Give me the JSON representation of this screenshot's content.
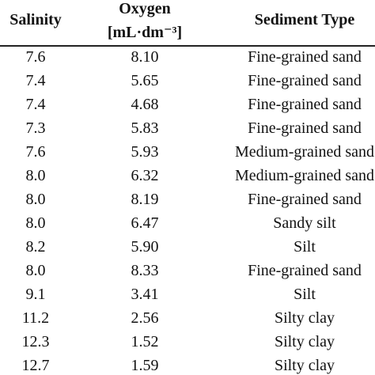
{
  "table": {
    "header": {
      "salinity": "Salinity",
      "oxygen": "Oxygen",
      "oxygen_unit": "[mL·dm⁻³]",
      "sediment": "Sediment Type"
    },
    "rows": [
      [
        "7.6",
        "8.10",
        "Fine-grained sand"
      ],
      [
        "7.4",
        "5.65",
        "Fine-grained sand"
      ],
      [
        "7.4",
        "4.68",
        "Fine-grained sand"
      ],
      [
        "7.3",
        "5.83",
        "Fine-grained sand"
      ],
      [
        "7.6",
        "5.93",
        "Medium-grained sand"
      ],
      [
        "8.0",
        "6.32",
        "Medium-grained sand"
      ],
      [
        "8.0",
        "8.19",
        "Fine-grained sand"
      ],
      [
        "8.0",
        "6.47",
        "Sandy silt"
      ],
      [
        "8.2",
        "5.90",
        "Silt"
      ],
      [
        "8.0",
        "8.33",
        "Fine-grained sand"
      ],
      [
        "9.1",
        "3.41",
        "Silt"
      ],
      [
        "11.2",
        "2.56",
        "Silty clay"
      ],
      [
        "12.3",
        "1.52",
        "Silty clay"
      ],
      [
        "12.7",
        "1.59",
        "Silty clay"
      ]
    ]
  }
}
